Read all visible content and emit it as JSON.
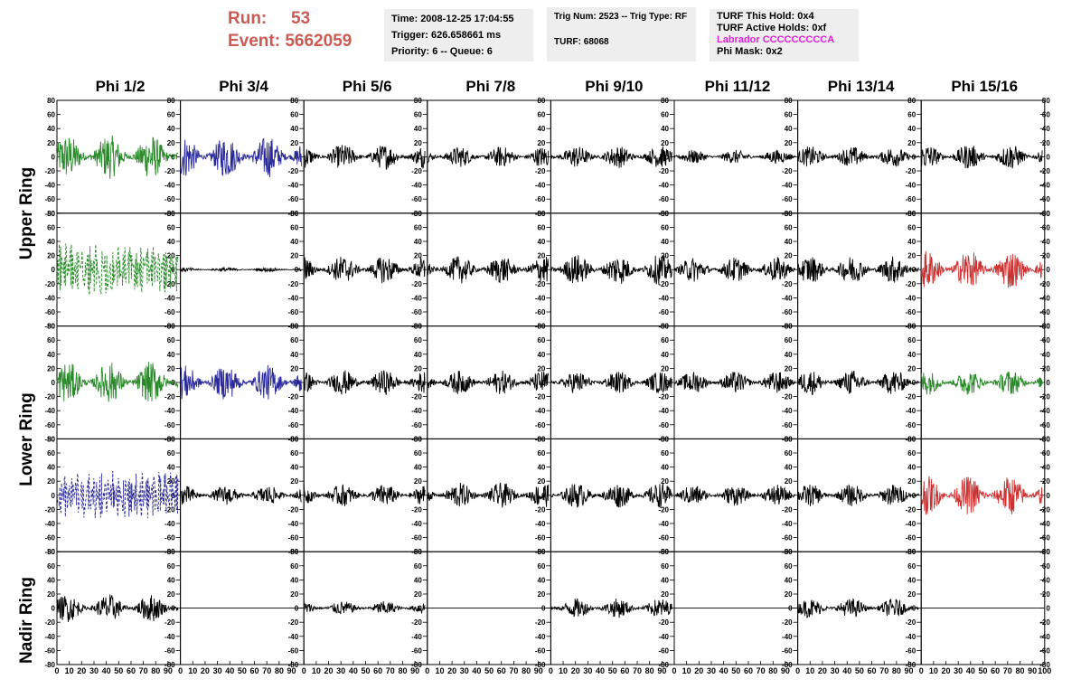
{
  "header": {
    "run_label": "Run:",
    "run_value": "53",
    "event_label": "Event:",
    "event_value": "5662059"
  },
  "time_box": {
    "time": "Time: 2008-12-25 17:04:55",
    "trigger": "Trigger: 626.658661 ms",
    "priority": "Priority: 6 -- Queue: 6"
  },
  "trig_box": {
    "trig": "Trig Num: 2523 -- Trig Type: RF",
    "turf": "TURF: 68068"
  },
  "turf_box": {
    "this_hold": "TURF This Hold: 0x4",
    "active_holds": "TURF Active Holds: 0xf",
    "labrador": "Labrador CCCCCCCCCA",
    "phi_mask": "Phi Mask: 0x2"
  },
  "phi_labels": [
    "Phi 1/2",
    "Phi 3/4",
    "Phi 5/6",
    "Phi 7/8",
    "Phi 9/10",
    "Phi 11/12",
    "Phi 13/14",
    "Phi 15/16"
  ],
  "ring_labels": {
    "upper": "Upper Ring",
    "lower": "Lower Ring",
    "nadir": "Nadir Ring"
  },
  "colors": {
    "green": "#2a8a2a",
    "blue": "#2a2a9a",
    "red": "#cc3333",
    "black": "#000000",
    "run_red": "#cc5a52",
    "magenta": "#e020d8"
  },
  "chart_data": {
    "type": "line",
    "xlim": [
      0,
      100
    ],
    "ylim": [
      -80,
      80
    ],
    "x_ticks": [
      "0",
      "10",
      "20",
      "30",
      "40",
      "50",
      "60",
      "70",
      "80",
      "90",
      "100"
    ],
    "x_ticks_shown": [
      "0",
      "10",
      "20",
      "30",
      "40",
      "50",
      "60",
      "70",
      "80",
      "90"
    ],
    "y_ticks": [
      "80",
      "60",
      "40",
      "20",
      "0",
      "-20",
      "-40",
      "-60",
      "-80"
    ],
    "rows": [
      {
        "name": "upper-1",
        "cells": [
          {
            "color": "green",
            "style": "solid",
            "amp": 32
          },
          {
            "color": "blue",
            "style": "solid",
            "amp": 30
          },
          {
            "color": "black",
            "style": "solid",
            "amp": 18
          },
          {
            "color": "black",
            "style": "solid",
            "amp": 15
          },
          {
            "color": "black",
            "style": "solid",
            "amp": 16
          },
          {
            "color": "black",
            "style": "solid",
            "amp": 10
          },
          {
            "color": "black",
            "style": "solid",
            "amp": 15
          },
          {
            "color": "black",
            "style": "solid",
            "amp": 18
          }
        ]
      },
      {
        "name": "upper-2",
        "cells": [
          {
            "color": "green",
            "style": "dashed",
            "amp": 38
          },
          {
            "color": "black",
            "style": "solid",
            "amp": 3
          },
          {
            "color": "black",
            "style": "solid",
            "amp": 20
          },
          {
            "color": "black",
            "style": "solid",
            "amp": 20
          },
          {
            "color": "black",
            "style": "solid",
            "amp": 22
          },
          {
            "color": "black",
            "style": "solid",
            "amp": 18
          },
          {
            "color": "black",
            "style": "solid",
            "amp": 20
          },
          {
            "color": "red",
            "style": "solid",
            "amp": 28
          }
        ]
      },
      {
        "name": "lower-1",
        "cells": [
          {
            "color": "green",
            "style": "solid",
            "amp": 30
          },
          {
            "color": "blue",
            "style": "solid",
            "amp": 25
          },
          {
            "color": "black",
            "style": "solid",
            "amp": 18
          },
          {
            "color": "black",
            "style": "solid",
            "amp": 17
          },
          {
            "color": "black",
            "style": "solid",
            "amp": 16
          },
          {
            "color": "black",
            "style": "solid",
            "amp": 16
          },
          {
            "color": "black",
            "style": "solid",
            "amp": 18
          },
          {
            "color": "green",
            "style": "solid",
            "amp": 18
          }
        ]
      },
      {
        "name": "lower-2",
        "cells": [
          {
            "color": "blue",
            "style": "dashed",
            "amp": 35
          },
          {
            "color": "black",
            "style": "solid",
            "amp": 14
          },
          {
            "color": "black",
            "style": "solid",
            "amp": 16
          },
          {
            "color": "black",
            "style": "solid",
            "amp": 18
          },
          {
            "color": "black",
            "style": "solid",
            "amp": 18
          },
          {
            "color": "black",
            "style": "solid",
            "amp": 15
          },
          {
            "color": "black",
            "style": "solid",
            "amp": 16
          },
          {
            "color": "red",
            "style": "solid",
            "amp": 28
          }
        ]
      },
      {
        "name": "nadir",
        "cells": [
          {
            "color": "black",
            "style": "solid",
            "amp": 20
          },
          {
            "color": "black",
            "style": "flat",
            "amp": 0
          },
          {
            "color": "black",
            "style": "solid",
            "amp": 10
          },
          {
            "color": "black",
            "style": "flat",
            "amp": 0
          },
          {
            "color": "black",
            "style": "solid",
            "amp": 14
          },
          {
            "color": "black",
            "style": "flat",
            "amp": 0
          },
          {
            "color": "black",
            "style": "solid",
            "amp": 14
          },
          {
            "color": "black",
            "style": "flat",
            "amp": 0
          }
        ]
      }
    ]
  }
}
